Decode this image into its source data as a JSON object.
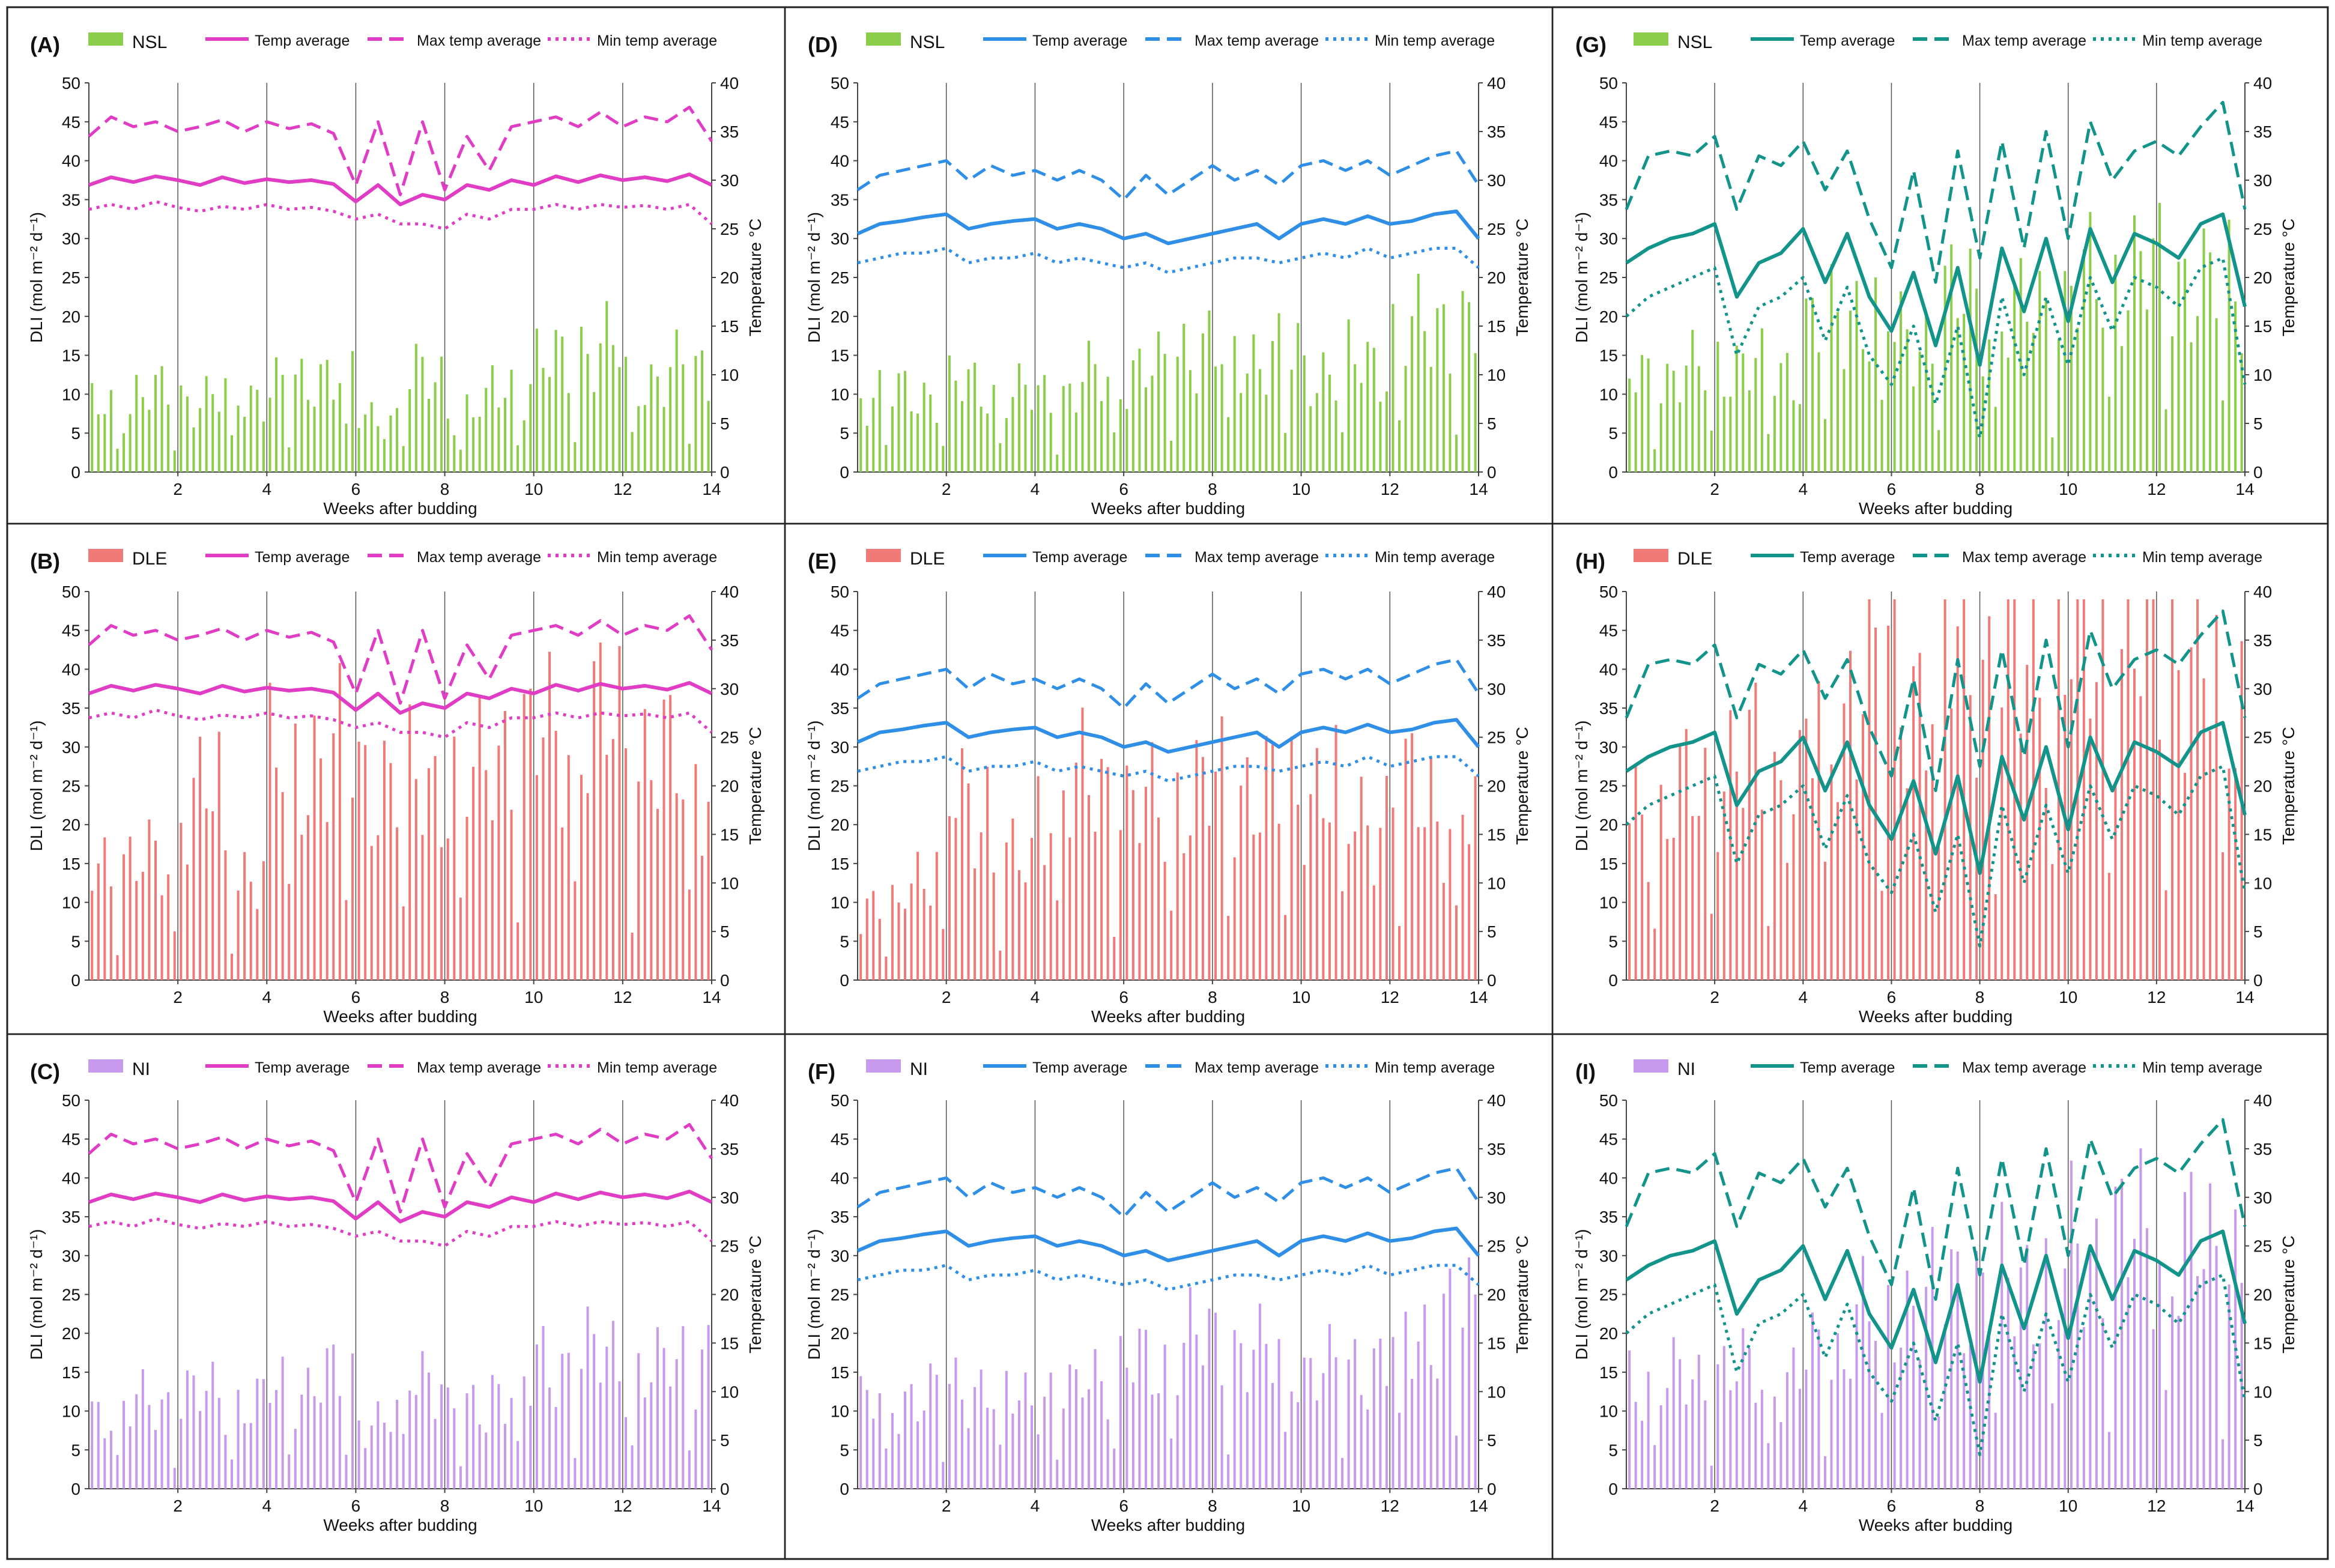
{
  "figure": {
    "x_axis_label": "Weeks after budding",
    "y_left_label": "DLI (mol m⁻² d⁻¹)",
    "y_right_label": "Temperature °C"
  },
  "legend": {
    "temp": "Temp average",
    "max": "Max temp average",
    "min": "Min temp average"
  },
  "colors": {
    "loc1": "#e03cc4",
    "loc2": "#2f8fe6",
    "loc3": "#12948a",
    "NSL": "#8ccd4c",
    "DLE": "#f07a78",
    "NI": "#c79aee"
  },
  "chart_data": [
    {
      "id": "A",
      "panel_label": "(A)",
      "type": "bar+line",
      "treatment": "NSL",
      "location": 1,
      "xlim": [
        0,
        14
      ],
      "ylim_left": [
        0,
        50
      ],
      "ylim_right": [
        0,
        40
      ],
      "x_ticks": [
        2,
        4,
        6,
        8,
        10,
        12,
        14
      ],
      "dli_weekly": [
        8.5,
        10,
        9.5,
        10,
        11,
        13,
        7,
        12,
        8,
        11,
        14,
        16,
        12,
        13
      ]
    },
    {
      "id": "B",
      "panel_label": "(B)",
      "type": "bar+line",
      "treatment": "DLE",
      "location": 1,
      "xlim": [
        0,
        14
      ],
      "ylim_left": [
        0,
        50
      ],
      "ylim_right": [
        0,
        40
      ],
      "x_ticks": [
        2,
        4,
        6,
        8,
        10,
        12,
        14
      ],
      "dli_weekly": [
        15,
        15,
        24,
        14,
        28,
        29,
        26,
        25,
        26,
        30,
        31,
        33,
        29,
        27
      ]
    },
    {
      "id": "C",
      "panel_label": "(C)",
      "type": "bar+line",
      "treatment": "NI",
      "location": 1,
      "xlim": [
        0,
        14
      ],
      "ylim_left": [
        0,
        50
      ],
      "ylim_right": [
        0,
        40
      ],
      "x_ticks": [
        2,
        4,
        6,
        8,
        10,
        12,
        14
      ],
      "dli_weekly": [
        10,
        11,
        12,
        11,
        13,
        14,
        9,
        15,
        10,
        13,
        16,
        17,
        15,
        17
      ]
    },
    {
      "id": "D",
      "panel_label": "(D)",
      "type": "bar+line",
      "treatment": "NSL",
      "location": 2,
      "xlim": [
        0,
        14
      ],
      "ylim_left": [
        0,
        50
      ],
      "ylim_right": [
        0,
        40
      ],
      "x_ticks": [
        2,
        4,
        6,
        8,
        10,
        12,
        14
      ],
      "dli_weekly": [
        10,
        10,
        11,
        10,
        10,
        12,
        13,
        16,
        15,
        15,
        13,
        14,
        18,
        19
      ]
    },
    {
      "id": "E",
      "panel_label": "(E)",
      "type": "bar+line",
      "treatment": "DLE",
      "location": 2,
      "xlim": [
        0,
        14
      ],
      "ylim_left": [
        0,
        50
      ],
      "ylim_right": [
        0,
        40
      ],
      "x_ticks": [
        2,
        4,
        6,
        8,
        10,
        12,
        14
      ],
      "dli_weekly": [
        9,
        14,
        23,
        15,
        24,
        25,
        22,
        24,
        25,
        24,
        25,
        21,
        24,
        21
      ]
    },
    {
      "id": "F",
      "panel_label": "(F)",
      "type": "bar+line",
      "treatment": "NI",
      "location": 2,
      "xlim": [
        0,
        14
      ],
      "ylim_left": [
        0,
        50
      ],
      "ylim_right": [
        0,
        40
      ],
      "x_ticks": [
        2,
        4,
        6,
        8,
        10,
        12,
        14
      ],
      "dli_weekly": [
        11,
        12,
        13,
        12,
        12,
        15,
        16,
        19,
        18,
        17,
        15,
        16,
        20,
        22
      ]
    },
    {
      "id": "G",
      "panel_label": "(G)",
      "type": "bar+line",
      "treatment": "NSL",
      "location": 3,
      "xlim": [
        0,
        14
      ],
      "ylim_left": [
        0,
        50
      ],
      "ylim_right": [
        0,
        40
      ],
      "x_ticks": [
        2,
        4,
        6,
        8,
        10,
        12,
        14
      ],
      "dli_weekly": [
        12,
        13,
        14,
        13,
        19,
        21,
        17,
        22,
        20,
        21,
        24,
        26,
        25,
        24
      ]
    },
    {
      "id": "H",
      "panel_label": "(H)",
      "type": "bar+line",
      "treatment": "DLE",
      "location": 3,
      "xlim": [
        0,
        14
      ],
      "ylim_left": [
        0,
        50
      ],
      "ylim_right": [
        0,
        40
      ],
      "x_ticks": [
        2,
        4,
        6,
        8,
        10,
        12,
        14
      ],
      "dli_weekly": [
        21,
        24,
        28,
        25,
        32,
        40,
        38,
        43,
        40,
        42,
        44,
        42,
        42,
        38
      ]
    },
    {
      "id": "I",
      "panel_label": "(I)",
      "type": "bar+line",
      "treatment": "NI",
      "location": 3,
      "xlim": [
        0,
        14
      ],
      "ylim_left": [
        0,
        50
      ],
      "ylim_right": [
        0,
        40
      ],
      "x_ticks": [
        2,
        4,
        6,
        8,
        10,
        12,
        14
      ],
      "dli_weekly": [
        14,
        14,
        15,
        14,
        17,
        22,
        24,
        26,
        26,
        27,
        30,
        32,
        31,
        30
      ]
    }
  ],
  "temperature_data": {
    "location_1": {
      "weeks": [
        0,
        0.5,
        1,
        1.5,
        2,
        2.5,
        3,
        3.5,
        4,
        4.5,
        5,
        5.5,
        6,
        6.5,
        7,
        7.5,
        8,
        8.5,
        9,
        9.5,
        10,
        10.5,
        11,
        11.5,
        12,
        12.5,
        13,
        13.5,
        14
      ],
      "avg": [
        29.5,
        30.3,
        29.8,
        30.4,
        30.0,
        29.5,
        30.3,
        29.7,
        30.1,
        29.8,
        30.0,
        29.6,
        27.8,
        29.5,
        27.5,
        28.5,
        28.0,
        29.5,
        29.0,
        30.0,
        29.5,
        30.4,
        29.8,
        30.5,
        30.0,
        30.3,
        29.9,
        30.6,
        29.5
      ],
      "max": [
        34.5,
        36.5,
        35.5,
        36.0,
        35.0,
        35.5,
        36.2,
        35.0,
        36.0,
        35.3,
        35.8,
        34.8,
        29.5,
        36.0,
        28.5,
        36.0,
        29.0,
        34.5,
        31.0,
        35.5,
        36.0,
        36.5,
        35.5,
        37.0,
        35.5,
        36.5,
        36.0,
        37.5,
        34.0
      ],
      "min": [
        27.0,
        27.5,
        27.0,
        27.8,
        27.2,
        26.8,
        27.3,
        27.0,
        27.5,
        27.0,
        27.2,
        26.8,
        26.0,
        26.5,
        25.5,
        25.5,
        25.0,
        26.5,
        26.0,
        27.0,
        27.0,
        27.5,
        27.0,
        27.5,
        27.2,
        27.4,
        27.0,
        27.5,
        25.5
      ]
    },
    "location_2": {
      "weeks": [
        0,
        0.5,
        1,
        1.5,
        2,
        2.5,
        3,
        3.5,
        4,
        4.5,
        5,
        5.5,
        6,
        6.5,
        7,
        7.5,
        8,
        8.5,
        9,
        9.5,
        10,
        10.5,
        11,
        11.5,
        12,
        12.5,
        13,
        13.5,
        14
      ],
      "avg": [
        24.5,
        25.5,
        25.8,
        26.2,
        26.5,
        25.0,
        25.5,
        25.8,
        26.0,
        25.0,
        25.5,
        25.0,
        24.0,
        24.5,
        23.5,
        24.0,
        24.5,
        25.0,
        25.5,
        24.0,
        25.5,
        26.0,
        25.5,
        26.3,
        25.5,
        25.8,
        26.5,
        26.8,
        24.0
      ],
      "max": [
        29.0,
        30.5,
        31.0,
        31.5,
        32.0,
        30.0,
        31.5,
        30.5,
        31.0,
        30.0,
        31.0,
        30.0,
        28.0,
        30.5,
        28.5,
        30.0,
        31.5,
        30.0,
        31.0,
        29.5,
        31.5,
        32.0,
        31.0,
        32.0,
        30.5,
        31.5,
        32.5,
        33.0,
        29.5
      ],
      "min": [
        21.5,
        22.0,
        22.5,
        22.5,
        23.0,
        21.5,
        22.0,
        22.0,
        22.5,
        21.5,
        22.0,
        21.5,
        21.0,
        21.5,
        20.5,
        21.0,
        21.5,
        22.0,
        22.0,
        21.5,
        22.0,
        22.5,
        22.0,
        23.0,
        22.0,
        22.5,
        23.0,
        23.0,
        21.0
      ]
    },
    "location_3": {
      "weeks": [
        0,
        0.5,
        1,
        1.5,
        2,
        2.5,
        3,
        3.5,
        4,
        4.5,
        5,
        5.5,
        6,
        6.5,
        7,
        7.5,
        8,
        8.5,
        9,
        9.5,
        10,
        10.5,
        11,
        11.5,
        12,
        12.5,
        13,
        13.5,
        14
      ],
      "avg": [
        21.5,
        23.0,
        24.0,
        24.5,
        25.5,
        18.0,
        21.5,
        22.5,
        25.0,
        19.5,
        24.5,
        18.0,
        14.5,
        20.5,
        13.0,
        21.0,
        11.0,
        23.0,
        16.5,
        24.0,
        15.5,
        25.0,
        19.5,
        24.5,
        23.5,
        22.0,
        25.5,
        26.5,
        17.0
      ],
      "max": [
        27.0,
        32.5,
        33.0,
        32.5,
        34.5,
        27.0,
        32.5,
        31.5,
        34.0,
        29.0,
        33.0,
        26.0,
        21.0,
        31.0,
        19.5,
        33.0,
        22.0,
        34.0,
        23.0,
        35.0,
        24.0,
        36.0,
        30.0,
        33.0,
        34.0,
        32.5,
        35.5,
        38.0,
        27.0
      ],
      "min": [
        16.0,
        18.0,
        19.0,
        20.0,
        21.0,
        12.0,
        17.0,
        18.0,
        20.0,
        13.5,
        19.0,
        12.0,
        9.0,
        15.0,
        7.0,
        15.0,
        3.5,
        18.0,
        10.0,
        18.0,
        11.0,
        20.0,
        14.5,
        20.0,
        19.0,
        17.0,
        21.0,
        22.0,
        9.0
      ]
    }
  }
}
